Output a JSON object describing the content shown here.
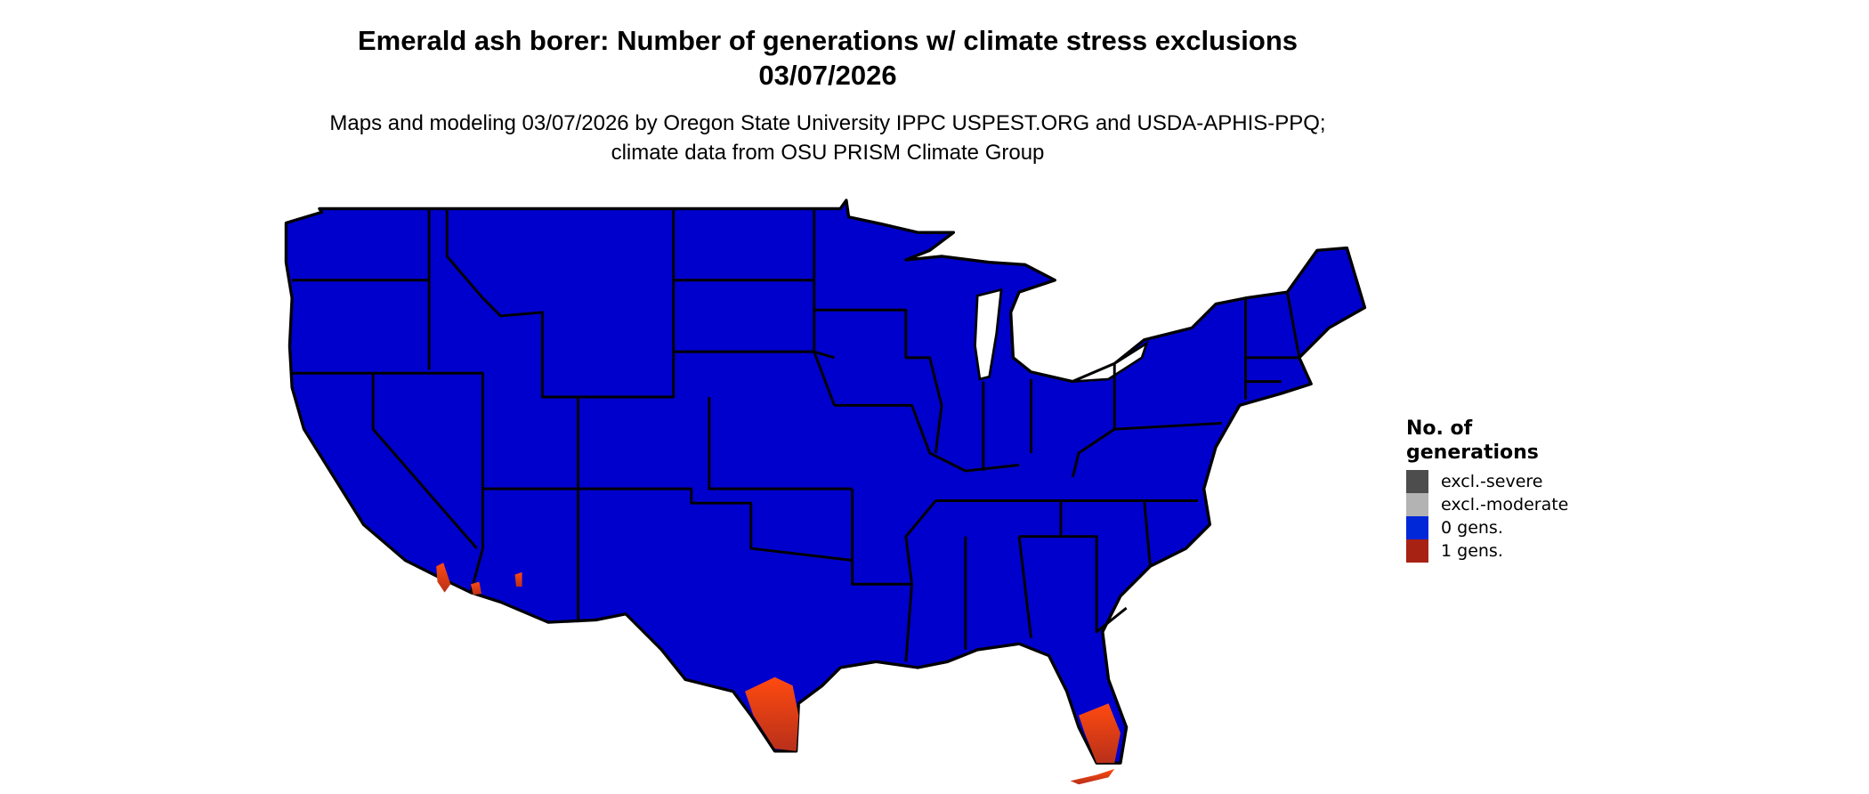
{
  "title": "Emerald ash borer: Number of generations w/ climate stress exclusions 03/07/2026",
  "subtitle": "Maps and modeling 03/07/2026 by Oregon State University IPPC USPEST.ORG and USDA-APHIS-PPQ; climate data from OSU PRISM Climate Group",
  "legend": {
    "title": "No. of generations",
    "items": [
      {
        "label": "excl.-severe",
        "color": "#4d4d4d"
      },
      {
        "label": "excl.-moderate",
        "color": "#b3b3b3"
      },
      {
        "label": "0 gens.",
        "color": "#0028d8"
      },
      {
        "label": "1 gens.",
        "color": "#a82214"
      }
    ]
  },
  "map": {
    "region": "Contiguous United States",
    "base_fill": "#0000cc",
    "highlight_fill": "#e8400a",
    "highlight_areas": [
      "South Texas",
      "South Florida",
      "Southern California desert",
      "Southwest Arizona"
    ]
  }
}
